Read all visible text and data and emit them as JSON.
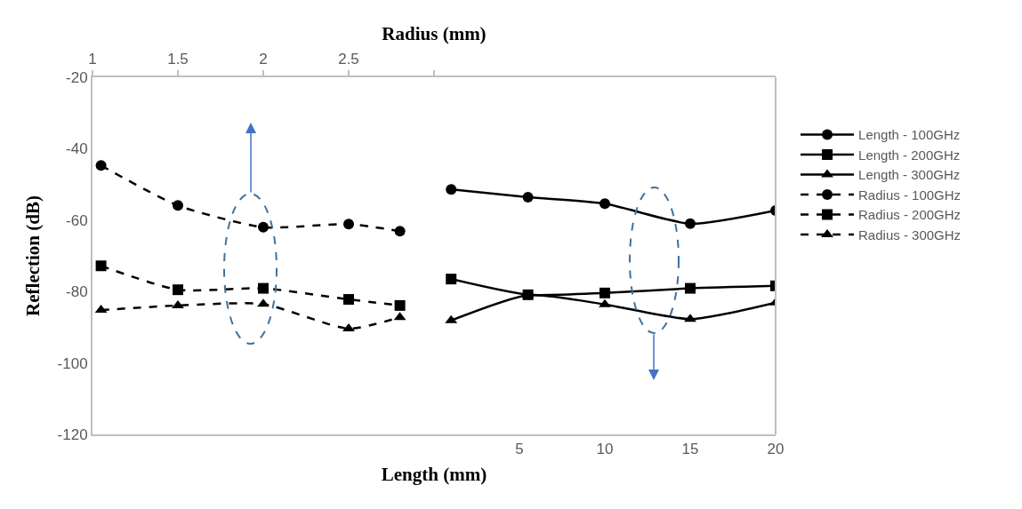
{
  "chart_data": {
    "type": "line",
    "xlabel": "Length (mm)",
    "x2label": "Radius (mm)",
    "ylabel": "Reflection (dB)",
    "xlim": [
      -20,
      20
    ],
    "xticks": [
      5,
      10,
      15,
      20
    ],
    "x2lim": [
      1,
      5
    ],
    "x2ticks": [
      1,
      1.5,
      2,
      2.5,
      {
        "value": 3,
        "label": null
      }
    ],
    "ylim": [
      -120,
      -20
    ],
    "yticks": [
      -20,
      -40,
      -60,
      -80,
      -100,
      -120
    ],
    "legend": "right",
    "series": [
      {
        "name": "Length - 100GHz",
        "color": "#000000",
        "marker": "circle",
        "line_style": "solid",
        "x": [
          1,
          5.5,
          10,
          15,
          20
        ],
        "values": [
          -51.4,
          -53.6,
          -55.4,
          -61.0,
          -57.3
        ]
      },
      {
        "name": "Length - 200GHz",
        "color": "#000000",
        "marker": "square",
        "line_style": "solid",
        "x": [
          1,
          5.5,
          10,
          15,
          20
        ],
        "values": [
          -76.5,
          -80.9,
          -80.4,
          -79.1,
          -78.4
        ]
      },
      {
        "name": "Length - 300GHz",
        "color": "#000000",
        "marker": "triangle",
        "line_style": "solid",
        "x": [
          1,
          5.5,
          10,
          15,
          20
        ],
        "values": [
          -88.1,
          -81.0,
          -83.6,
          -87.7,
          -83.1
        ]
      },
      {
        "name": "Radius - 100GHz",
        "color": "#000000",
        "marker": "circle",
        "line_style": "dashed",
        "axis": "x2",
        "x": [
          1.05,
          1.5,
          2,
          2.5,
          2.8
        ],
        "values": [
          -44.7,
          -55.9,
          -62.0,
          -61.1,
          -63.1
        ]
      },
      {
        "name": "Radius - 200GHz",
        "color": "#000000",
        "marker": "square",
        "line_style": "dashed",
        "axis": "x2",
        "x": [
          1.05,
          1.5,
          2,
          2.5,
          2.8
        ],
        "values": [
          -72.8,
          -79.5,
          -79.1,
          -82.2,
          -83.9
        ]
      },
      {
        "name": "Radius - 300GHz",
        "color": "#000000",
        "marker": "triangle",
        "line_style": "dashed",
        "axis": "x2",
        "x": [
          1.05,
          1.5,
          2,
          2.5,
          2.8
        ],
        "values": [
          -85.2,
          -83.9,
          -83.5,
          -90.4,
          -87.2
        ]
      }
    ]
  }
}
